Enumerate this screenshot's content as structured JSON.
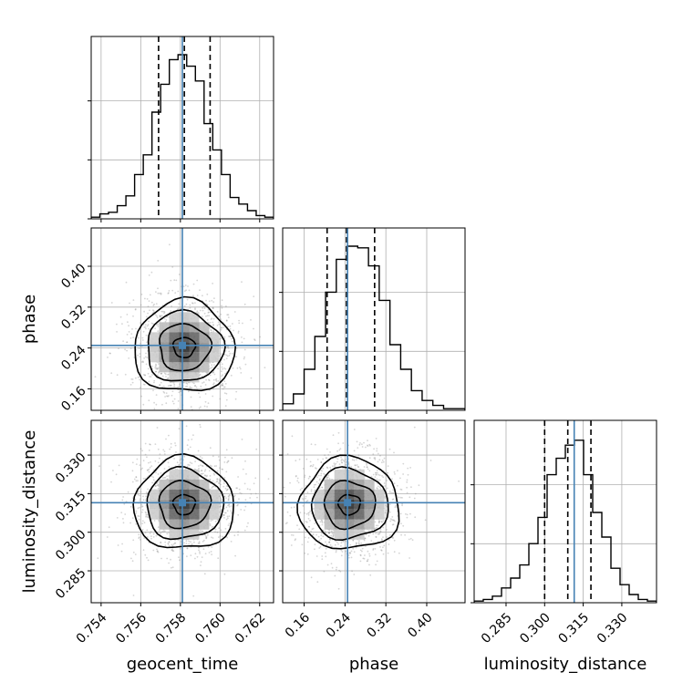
{
  "chart_data": {
    "type": "corner",
    "parameters": [
      "geocent_time",
      "phase",
      "luminosity_distance"
    ],
    "axis_labels": {
      "geocent_time": "geocent_time",
      "phase": "phase",
      "luminosity_distance": "luminosity_distance"
    },
    "ranges": {
      "geocent_time": [
        0.7535,
        0.7627
      ],
      "phase": [
        0.118,
        0.475
      ],
      "luminosity_distance": [
        0.2726,
        0.3435
      ]
    },
    "ticks": {
      "geocent_time": {
        "values": [
          0.754,
          0.756,
          0.758,
          0.76,
          0.762
        ],
        "labels": [
          "0.754",
          "0.756",
          "0.758",
          "0.760",
          "0.762"
        ]
      },
      "phase": {
        "values": [
          0.16,
          0.24,
          0.32,
          0.4
        ],
        "labels": [
          "0.16",
          "0.24",
          "0.32",
          "0.40"
        ]
      },
      "luminosity_distance": {
        "values": [
          0.285,
          0.3,
          0.315,
          0.33
        ],
        "labels": [
          "0.285",
          "0.300",
          "0.315",
          "0.330"
        ]
      }
    },
    "truths": {
      "geocent_time": 0.7581,
      "phase": 0.245,
      "luminosity_distance": 0.3115
    },
    "quantiles": {
      "geocent_time": [
        0.7569,
        0.7582,
        0.7595
      ],
      "phase": [
        0.205,
        0.243,
        0.298
      ],
      "luminosity_distance": [
        0.3,
        0.309,
        0.318
      ]
    },
    "histograms": {
      "geocent_time": [
        0.01,
        0.03,
        0.04,
        0.08,
        0.14,
        0.27,
        0.39,
        0.65,
        0.82,
        0.97,
        1.0,
        0.93,
        0.84,
        0.58,
        0.42,
        0.27,
        0.13,
        0.09,
        0.05,
        0.02,
        0.01
      ],
      "phase": [
        0.04,
        0.1,
        0.25,
        0.45,
        0.72,
        0.92,
        1.0,
        0.99,
        0.88,
        0.67,
        0.4,
        0.25,
        0.12,
        0.06,
        0.03,
        0.01,
        0.01
      ],
      "luminosity_distance": [
        0.01,
        0.02,
        0.04,
        0.09,
        0.15,
        0.23,
        0.36,
        0.52,
        0.78,
        0.88,
        0.96,
        0.99,
        0.78,
        0.55,
        0.4,
        0.21,
        0.11,
        0.05,
        0.02,
        0.01
      ]
    },
    "hist_y_ticks_relative": [
      0.0,
      0.33,
      0.66
    ],
    "contour_levels": 4,
    "density_samples_shown": true,
    "grid": true,
    "colors": {
      "histogram": "#000000",
      "quantile": "#000000",
      "truth": "#4682b4",
      "samples": "#888888"
    }
  }
}
